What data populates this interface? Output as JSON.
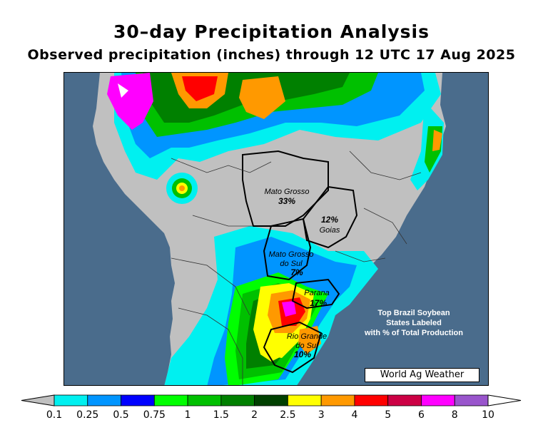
{
  "header": {
    "title": "30–day Precipitation Analysis",
    "subtitle": "Observed precipitation (inches) through 12 UTC 17 Aug 2025"
  },
  "map": {
    "states": [
      {
        "name": "Mato Grosso",
        "pct": "33%"
      },
      {
        "name": "Goias",
        "pct": "12%"
      },
      {
        "name": "Mato Grosso do Sul",
        "name_line1": "Mato Grosso",
        "name_line2": "do Sul",
        "pct": "7%"
      },
      {
        "name": "Parana",
        "pct": "17%"
      },
      {
        "name": "Rio Grande do Sul",
        "name_line1": "Rio Grande",
        "name_line2": "do Sul",
        "pct": "10%"
      }
    ],
    "note_lines": [
      "Top Brazil Soybean",
      "States Labeled",
      "with % of Total Production"
    ],
    "credit": "World Ag Weather",
    "colors": {
      "ocean": "#4a6c8c",
      "land_dry": "#c0c0c0"
    }
  },
  "legend": {
    "ticks": [
      "0.1",
      "0.25",
      "0.5",
      "0.75",
      "1",
      "1.5",
      "2",
      "2.5",
      "3",
      "4",
      "5",
      "6",
      "8",
      "10"
    ],
    "colors": [
      "#00f0f0",
      "#0095ff",
      "#0000ff",
      "#00ff00",
      "#00c000",
      "#008000",
      "#004000",
      "#ffff00",
      "#ff9900",
      "#ff0000",
      "#cc0044",
      "#ff00ff",
      "#9955cc"
    ],
    "below_color": "#c0c0c0",
    "above_color": "#ffffff"
  }
}
